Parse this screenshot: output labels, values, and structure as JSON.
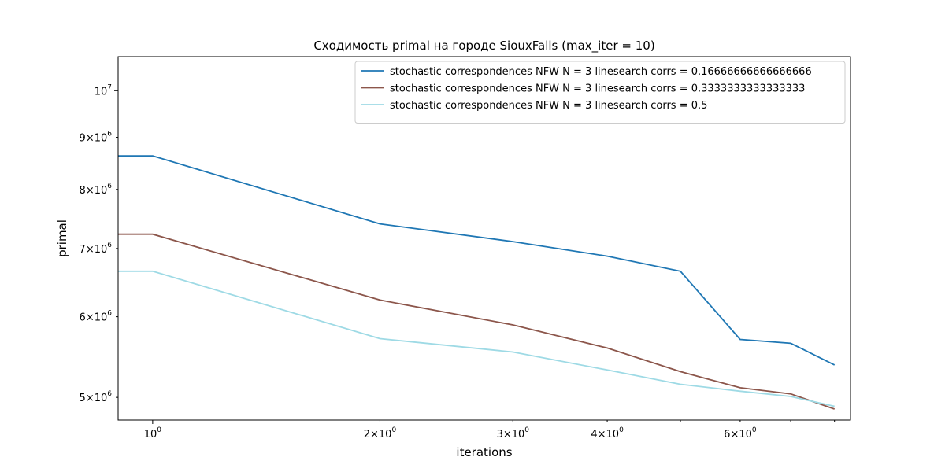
{
  "chart_data": {
    "type": "line",
    "title": "Сходимость primal на городе SiouxFalls  (max_iter = 10)",
    "xlabel": "iterations",
    "ylabel": "primal",
    "x_scale": "log",
    "y_scale": "log",
    "xlim": [
      0.9,
      8.4
    ],
    "ylim": [
      4750000,
      10800000
    ],
    "x_ticks": [
      {
        "value": 1,
        "label": "10^0",
        "major": true
      },
      {
        "value": 2,
        "label": "2×10^0",
        "major": false
      },
      {
        "value": 3,
        "label": "3×10^0",
        "major": false
      },
      {
        "value": 4,
        "label": "4×10^0",
        "major": false
      },
      {
        "value": 5,
        "label": "",
        "major": false
      },
      {
        "value": 6,
        "label": "6×10^0",
        "major": false
      },
      {
        "value": 7,
        "label": "",
        "major": false
      },
      {
        "value": 8,
        "label": "",
        "major": false
      }
    ],
    "y_ticks": [
      {
        "value": 5000000,
        "label": "5×10^6",
        "major": false
      },
      {
        "value": 6000000,
        "label": "6×10^6",
        "major": false
      },
      {
        "value": 7000000,
        "label": "7×10^6",
        "major": false
      },
      {
        "value": 8000000,
        "label": "8×10^6",
        "major": false
      },
      {
        "value": 9000000,
        "label": "9×10^6",
        "major": false
      },
      {
        "value": 10000000,
        "label": "10^7",
        "major": true
      }
    ],
    "grid": false,
    "legend_position": "top-right",
    "x": [
      0,
      1,
      2,
      3,
      4,
      5,
      6,
      7,
      8
    ],
    "series": [
      {
        "name": "stochastic correspondences NFW N = 3 linesearch corrs = 0.16666666666666666",
        "color": "#1f77b4",
        "values": [
          8630000,
          8630000,
          7400000,
          7110000,
          6880000,
          6650000,
          5700000,
          5650000,
          5380000
        ]
      },
      {
        "name": "stochastic correspondences NFW N = 3 linesearch corrs = 0.3333333333333333",
        "color": "#8c564b",
        "values": [
          7230000,
          7230000,
          6230000,
          5890000,
          5590000,
          5300000,
          5110000,
          5040000,
          4870000
        ]
      },
      {
        "name": "stochastic correspondences NFW N = 3 linesearch corrs = 0.5",
        "color": "#9edae5",
        "values": [
          6650000,
          6650000,
          5710000,
          5540000,
          5320000,
          5150000,
          5070000,
          5010000,
          4900000
        ]
      }
    ]
  }
}
